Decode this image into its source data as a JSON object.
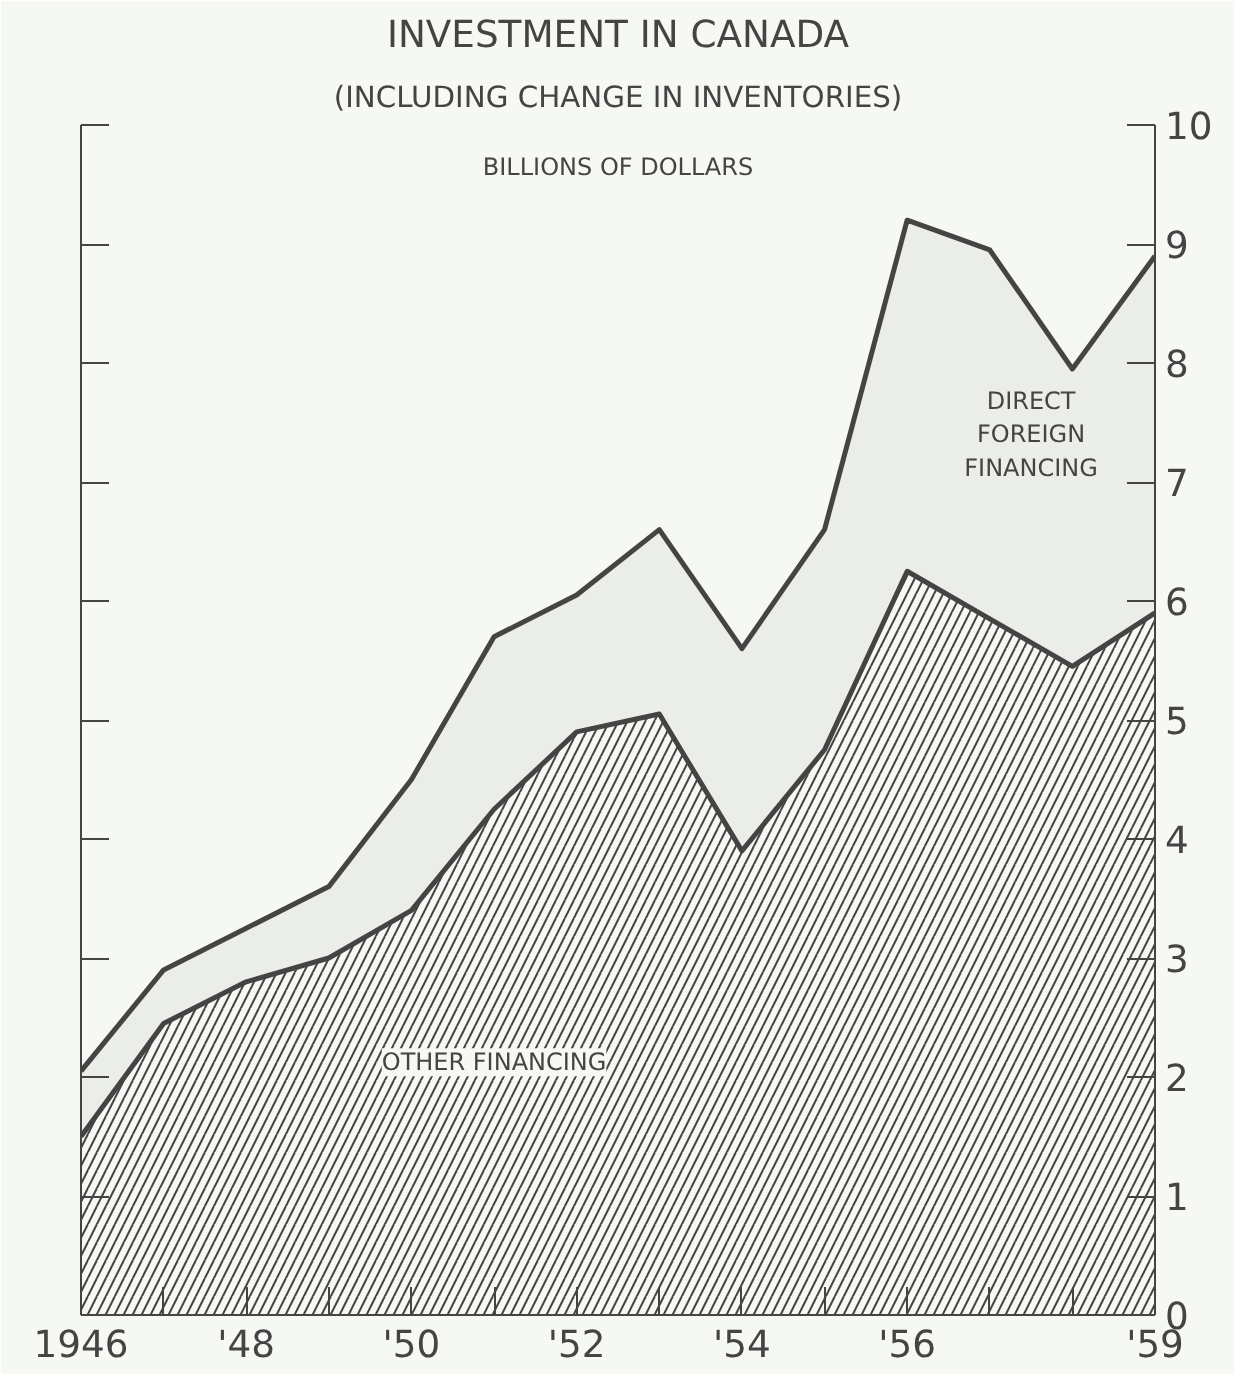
{
  "chart_data": {
    "type": "area",
    "stacked": true,
    "title": "INVESTMENT IN CANADA",
    "subtitle": "(INCLUDING CHANGE IN INVENTORIES)",
    "ylabel": "BILLIONS OF DOLLARS",
    "x": [
      1946,
      1947,
      1948,
      1949,
      1950,
      1951,
      1952,
      1953,
      1954,
      1955,
      1956,
      1957,
      1958,
      1959
    ],
    "series": [
      {
        "name": "OTHER FINANCING",
        "color": "#444444",
        "values": [
          1.5,
          2.45,
          2.8,
          3.0,
          3.4,
          4.25,
          4.9,
          5.05,
          3.9,
          4.75,
          6.25,
          5.85,
          5.45,
          5.9
        ]
      },
      {
        "name": "DIRECT FOREIGN FINANCING",
        "color": "#444444",
        "values": [
          0.55,
          0.45,
          0.45,
          0.6,
          1.1,
          1.45,
          1.15,
          1.55,
          1.7,
          1.85,
          2.95,
          3.1,
          2.5,
          3.0
        ]
      }
    ],
    "xlim": [
      1946,
      1959
    ],
    "xticks": [
      {
        "value": 1946,
        "label": "1946"
      },
      {
        "value": 1947,
        "label": null
      },
      {
        "value": 1948,
        "label": "'48"
      },
      {
        "value": 1949,
        "label": null
      },
      {
        "value": 1950,
        "label": "'50"
      },
      {
        "value": 1951,
        "label": null
      },
      {
        "value": 1952,
        "label": "'52"
      },
      {
        "value": 1953,
        "label": null
      },
      {
        "value": 1954,
        "label": "'54"
      },
      {
        "value": 1955,
        "label": null
      },
      {
        "value": 1956,
        "label": "'56"
      },
      {
        "value": 1957,
        "label": null
      },
      {
        "value": 1958,
        "label": null
      },
      {
        "value": 1959,
        "label": "'59"
      }
    ],
    "ylim": [
      0,
      10
    ],
    "yticks": [
      0,
      1,
      2,
      3,
      4,
      5,
      6,
      7,
      8,
      9,
      10
    ],
    "grid": false
  }
}
